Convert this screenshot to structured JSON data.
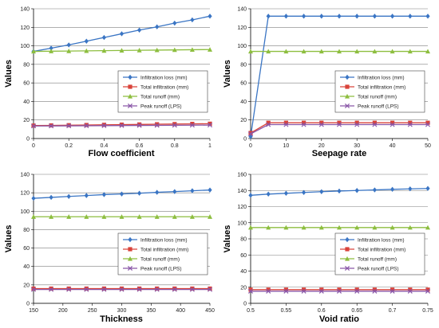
{
  "chart_data": [
    {
      "type": "line",
      "xlabel": "Flow coefficient",
      "ylabel": "Values",
      "x": [
        0,
        0.1,
        0.2,
        0.3,
        0.4,
        0.5,
        0.6,
        0.7,
        0.8,
        0.9,
        1.0
      ],
      "xlim": [
        0,
        1
      ],
      "xticks": [
        "0",
        "0.2",
        "0.4",
        "0.6",
        "0.8",
        "1"
      ],
      "xtick_values": [
        0,
        0.2,
        0.4,
        0.6,
        0.8,
        1
      ],
      "ylim": [
        0,
        140
      ],
      "yticks": [
        0,
        20,
        40,
        60,
        80,
        100,
        120,
        140
      ],
      "grid": true,
      "legend_position": "right",
      "series": [
        {
          "name": "Infiltration loss (mm)",
          "values": [
            94,
            97.5,
            101,
            105,
            109,
            113,
            117,
            120.5,
            124.5,
            128,
            132
          ]
        },
        {
          "name": "Total infiltration (mm)",
          "values": [
            14,
            14.2,
            14.4,
            14.6,
            14.8,
            15,
            15.2,
            15.4,
            15.6,
            15.8,
            16
          ]
        },
        {
          "name": "Total runoff (mm)",
          "values": [
            94,
            94.2,
            94.4,
            94.6,
            94.8,
            95,
            95.2,
            95.4,
            95.6,
            95.8,
            96
          ]
        },
        {
          "name": "Peak runoff (LPS)",
          "values": [
            13.5,
            13.6,
            13.7,
            13.8,
            13.9,
            14,
            14.1,
            14.2,
            14.3,
            14.4,
            14.5
          ]
        }
      ]
    },
    {
      "type": "line",
      "xlabel": "Seepage rate",
      "ylabel": "Values",
      "x": [
        0,
        5,
        10,
        15,
        20,
        25,
        30,
        35,
        40,
        45,
        50
      ],
      "xlim": [
        0,
        50
      ],
      "xticks": [
        "0",
        "10",
        "20",
        "30",
        "40",
        "50"
      ],
      "xtick_values": [
        0,
        10,
        20,
        30,
        40,
        50
      ],
      "ylim": [
        0,
        140
      ],
      "yticks": [
        0,
        20,
        40,
        60,
        80,
        100,
        120,
        140
      ],
      "grid": true,
      "legend_position": "right",
      "series": [
        {
          "name": "Infiltration loss (mm)",
          "values": [
            2,
            132,
            132,
            132,
            132,
            132,
            132,
            132,
            132,
            132,
            132
          ]
        },
        {
          "name": "Total infiltration (mm)",
          "values": [
            6,
            17,
            17,
            17,
            17,
            17,
            17,
            17,
            17,
            17,
            17
          ]
        },
        {
          "name": "Total runoff (mm)",
          "values": [
            94,
            94,
            94,
            94,
            94,
            94,
            94,
            94,
            94,
            94,
            94
          ]
        },
        {
          "name": "Peak runoff (LPS)",
          "values": [
            5,
            15,
            15,
            15,
            15,
            15,
            15,
            15,
            15,
            15,
            15
          ]
        }
      ]
    },
    {
      "type": "line",
      "xlabel": "Thickness",
      "ylabel": "Values",
      "x": [
        150,
        180,
        210,
        240,
        270,
        300,
        330,
        360,
        390,
        420,
        450
      ],
      "xlim": [
        150,
        450
      ],
      "xticks": [
        "150",
        "200",
        "250",
        "300",
        "350",
        "400",
        "450"
      ],
      "xtick_values": [
        150,
        200,
        250,
        300,
        350,
        400,
        450
      ],
      "ylim": [
        0,
        140
      ],
      "yticks": [
        0,
        20,
        40,
        60,
        80,
        100,
        120,
        140
      ],
      "grid": true,
      "legend_position": "right",
      "series": [
        {
          "name": "Infiltration loss (mm)",
          "values": [
            114,
            115,
            116,
            117,
            118,
            118.7,
            119.5,
            120.5,
            121.3,
            122.2,
            123
          ]
        },
        {
          "name": "Total infiltration (mm)",
          "values": [
            16,
            16,
            16,
            16,
            16,
            16,
            16,
            16,
            16,
            16,
            16
          ]
        },
        {
          "name": "Total runoff (mm)",
          "values": [
            94,
            94,
            94,
            94,
            94,
            94,
            94,
            94,
            94,
            94,
            94
          ]
        },
        {
          "name": "Peak runoff (LPS)",
          "values": [
            15,
            15,
            15,
            15,
            15,
            15,
            15,
            15,
            15,
            15,
            15
          ]
        }
      ]
    },
    {
      "type": "line",
      "xlabel": "Void ratio",
      "ylabel": "Values",
      "x": [
        0.5,
        0.525,
        0.55,
        0.575,
        0.6,
        0.625,
        0.65,
        0.675,
        0.7,
        0.725,
        0.75
      ],
      "xlim": [
        0.5,
        0.75
      ],
      "xticks": [
        "0.5",
        "0.55",
        "0.6",
        "0.65",
        "0.7",
        "0.75"
      ],
      "xtick_values": [
        0.5,
        0.55,
        0.6,
        0.65,
        0.7,
        0.75
      ],
      "ylim": [
        0,
        160
      ],
      "yticks": [
        0,
        20,
        40,
        60,
        80,
        100,
        120,
        140,
        160
      ],
      "grid": true,
      "legend_position": "right",
      "series": [
        {
          "name": "Infiltration loss (mm)",
          "values": [
            134,
            135.5,
            136.5,
            137.5,
            138.5,
            139.3,
            140,
            140.7,
            141.4,
            142,
            142.5
          ]
        },
        {
          "name": "Total infiltration (mm)",
          "values": [
            17,
            17,
            17,
            17,
            17,
            17,
            17,
            17,
            17,
            17,
            17
          ]
        },
        {
          "name": "Total runoff (mm)",
          "values": [
            94,
            94,
            94,
            94,
            94,
            94,
            94,
            94,
            94,
            94,
            94
          ]
        },
        {
          "name": "Peak runoff (LPS)",
          "values": [
            15,
            15,
            15,
            15,
            15,
            15,
            15,
            15,
            15,
            15,
            15
          ]
        }
      ]
    }
  ],
  "style": {
    "series_colors": [
      "#3a75c4",
      "#d9433a",
      "#8dbe3f",
      "#8a57a8"
    ],
    "series_markers": [
      "diamond",
      "square",
      "triangle",
      "x"
    ],
    "grid_color": "#7f7f7f",
    "axis_color": "#000000"
  }
}
